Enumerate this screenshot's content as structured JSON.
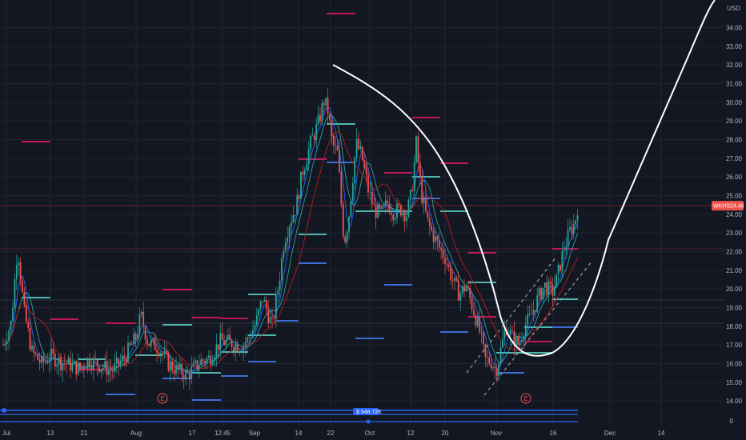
{
  "chart_data": {
    "type": "candlestick",
    "currency": "USD",
    "ticker_label": "WKHS",
    "last_price_label": "24.46",
    "last_price": 24.46,
    "bubble_label": "$ 548.72K",
    "y_min": 13.0,
    "y_max": 35.5,
    "y_ticks": [
      "14.00",
      "15.00",
      "16.00",
      "17.00",
      "18.00",
      "19.00",
      "20.00",
      "21.00",
      "22.00",
      "23.00",
      "24.00",
      "25.00",
      "26.00",
      "27.00",
      "28.00",
      "29.00",
      "30.00",
      "31.00",
      "32.00",
      "33.00",
      "34.00"
    ],
    "zero_label": "0",
    "x_ticks": [
      "Jul",
      "13",
      "21",
      "Aug",
      "17",
      "12:45",
      "Sep",
      "14",
      "22",
      "Oct",
      "12",
      "20",
      "Nov",
      "16",
      "Dec",
      "14"
    ],
    "earnings_label": "E",
    "grid": true,
    "colors": {
      "background": "#131722",
      "grid": "#1f2433",
      "up": "#26a69a",
      "down": "#ef5350",
      "ma1": "#2962ff",
      "ma2": "#26a69a",
      "ma3": "#b71c1c",
      "level_red": "#c2185b",
      "level_green": "#4db6ac",
      "level_blue": "#3d6bd6",
      "price_tag": "#ef5350",
      "drawing": "#ffffff"
    }
  }
}
